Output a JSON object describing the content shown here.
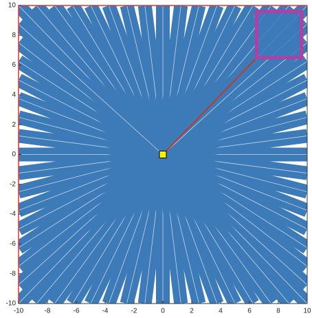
{
  "chart_data": {
    "type": "rays",
    "xlim": [
      -10,
      10
    ],
    "ylim": [
      -10,
      10
    ],
    "xticks": [
      -10,
      -8,
      -6,
      -4,
      -2,
      0,
      2,
      4,
      6,
      8,
      10
    ],
    "yticks": [
      -10,
      -8,
      -6,
      -4,
      -2,
      0,
      2,
      4,
      6,
      8,
      10
    ],
    "color": "#3d7ab8",
    "rays": {
      "x0": 0,
      "y0": 0,
      "x": [
        -10,
        -8.75,
        -7.5,
        -6.25,
        -5,
        -3.75,
        -2.5,
        -1.25,
        0,
        1.25,
        2.5,
        3.75,
        5,
        6.25,
        7.5,
        8.75,
        10,
        -10,
        -8.75,
        -7.5,
        -6.25,
        -5,
        -3.75,
        -2.5,
        -1.25,
        0,
        1.25,
        2.5,
        3.75,
        5,
        6.25,
        7.5,
        8.75,
        10,
        -10,
        -10,
        -10,
        -10,
        -10,
        -10,
        -10,
        -10,
        -10,
        -10,
        -10,
        -10,
        -10,
        -10,
        -10,
        10,
        10,
        10,
        10,
        10,
        10,
        10,
        10,
        10,
        10,
        10,
        10,
        10,
        10,
        10
      ],
      "y": [
        10,
        10,
        10,
        10,
        10,
        10,
        10,
        10,
        10,
        10,
        10,
        10,
        10,
        10,
        10,
        10,
        10,
        -10,
        -10,
        -10,
        -10,
        -10,
        -10,
        -10,
        -10,
        -10,
        -10,
        -10,
        -10,
        -10,
        -10,
        -10,
        -10,
        -10,
        -8.75,
        -7.5,
        -6.25,
        -5,
        -3.75,
        -2.5,
        -1.25,
        0,
        1.25,
        2.5,
        3.75,
        5,
        6.25,
        7.5,
        8.75,
        -8.75,
        -7.5,
        -6.25,
        -5,
        -3.75,
        -2.5,
        -1.25,
        0,
        1.25,
        2.5,
        3.75,
        5,
        6.25,
        7.5,
        8.75
      ]
    },
    "marker": {
      "x": 0,
      "y": 0,
      "color": "#ffee00"
    },
    "connector": {
      "x": [
        0,
        6.5
      ],
      "y": [
        0,
        6.5
      ],
      "color": "#c0392b"
    },
    "inset": {
      "x": [
        6.5,
        9.6
      ],
      "y": [
        6.5,
        9.6
      ],
      "color": "#b23fa6"
    }
  }
}
